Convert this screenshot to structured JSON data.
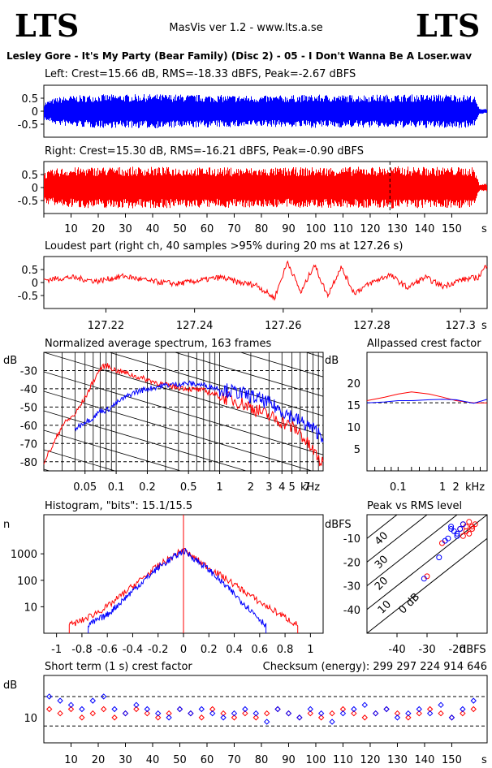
{
  "header": {
    "logo_left": "LTS",
    "logo_right": "LTS",
    "app_title": "MasVis ver 1.2 - www.lts.a.se",
    "file_title": "Lesley Gore - It's My Party (Bear Family) (Disc 2) - 05 - I Don't Wanna Be A Loser.wav"
  },
  "colors": {
    "left": "#0000ff",
    "right": "#ff0000",
    "axis": "#000000"
  },
  "panels": {
    "left": {
      "title": "Left: Crest=15.66 dB, RMS=-18.33 dBFS, Peak=-2.67 dBFS",
      "yticks": [
        "0.5",
        "0",
        "-0.5"
      ]
    },
    "right": {
      "title": "Right: Crest=15.30 dB, RMS=-16.21 dBFS, Peak=-0.90 dBFS",
      "yticks": [
        "0.5",
        "0",
        "-0.5"
      ]
    },
    "time_axis": {
      "ticks": [
        "10",
        "20",
        "30",
        "40",
        "50",
        "60",
        "70",
        "80",
        "90",
        "100",
        "110",
        "120",
        "130",
        "140",
        "150"
      ],
      "unit": "s"
    },
    "loudest": {
      "title": "Loudest part (right ch, 40 samples >95% during 20 ms at 127.26 s)",
      "yticks": [
        "0.5",
        "0",
        "-0.5"
      ],
      "xticks": [
        "127.22",
        "127.24",
        "127.26",
        "127.28",
        "127.3"
      ],
      "unit": "s"
    },
    "spectrum": {
      "title": "Normalized average spectrum, 163 frames",
      "ylabel": "dB",
      "yticks": [
        "-30",
        "-40",
        "-50",
        "-60",
        "-70",
        "-80"
      ],
      "xticks": [
        "0.05",
        "0.1",
        "0.2",
        "0.5",
        "1",
        "2",
        "3",
        "4",
        "5",
        "7"
      ],
      "unit": "kHz"
    },
    "allpass": {
      "title": "Allpassed crest factor",
      "ylabel": "dB",
      "yticks": [
        "20",
        "15",
        "10",
        "5"
      ],
      "xticks": [
        "0.1",
        "1",
        "2"
      ],
      "unit": "kHz"
    },
    "histogram": {
      "title": "Histogram, \"bits\": 15.1/15.5",
      "ylabel": "n",
      "yticks": [
        "1000",
        "100",
        "10"
      ],
      "xticks": [
        "-1",
        "-0.8",
        "-0.6",
        "-0.4",
        "-0.2",
        "0",
        "0.2",
        "0.4",
        "0.6",
        "0.8",
        "1"
      ]
    },
    "peakrms": {
      "title": "Peak vs RMS level",
      "ylabel": "dBFS",
      "yticks": [
        "-10",
        "-20",
        "-30",
        "-40"
      ],
      "xticks": [
        "-40",
        "-30",
        "-20"
      ],
      "unit": "dBFS",
      "diag_labels": [
        "40",
        "30",
        "20",
        "10",
        "0 dB"
      ]
    },
    "shortterm": {
      "title": "Short term (1 s) crest factor",
      "checksum": "Checksum (energy):  299 297 224 914 646",
      "ylabel": "dB",
      "yticks": [
        "10"
      ],
      "xticks": [
        "10",
        "20",
        "30",
        "40",
        "50",
        "60",
        "70",
        "80",
        "90",
        "100",
        "110",
        "120",
        "130",
        "140",
        "150"
      ],
      "unit": "s"
    }
  },
  "chart_data": [
    {
      "type": "area",
      "name": "left-waveform",
      "title": "Left: Crest=15.66 dB, RMS=-18.33 dBFS, Peak=-2.67 dBFS",
      "xlim": [
        0,
        163
      ],
      "ylim": [
        -1,
        1
      ],
      "envelope": {
        "x": [
          0,
          5,
          10,
          20,
          30,
          40,
          50,
          60,
          70,
          80,
          90,
          100,
          110,
          120,
          130,
          140,
          150,
          158,
          160
        ],
        "amp": [
          0.35,
          0.55,
          0.6,
          0.65,
          0.65,
          0.66,
          0.65,
          0.63,
          0.62,
          0.6,
          0.62,
          0.64,
          0.63,
          0.64,
          0.65,
          0.65,
          0.66,
          0.62,
          0.1
        ]
      }
    },
    {
      "type": "area",
      "name": "right-waveform",
      "title": "Right: Crest=15.30 dB, RMS=-16.21 dBFS, Peak=-0.90 dBFS",
      "xlim": [
        0,
        163
      ],
      "ylim": [
        -1,
        1
      ],
      "envelope": {
        "x": [
          0,
          5,
          10,
          20,
          30,
          40,
          50,
          60,
          70,
          80,
          90,
          100,
          110,
          120,
          130,
          140,
          150,
          158,
          160
        ],
        "amp": [
          0.6,
          0.75,
          0.78,
          0.8,
          0.8,
          0.8,
          0.79,
          0.78,
          0.78,
          0.76,
          0.78,
          0.79,
          0.8,
          0.8,
          0.82,
          0.8,
          0.8,
          0.78,
          0.15
        ]
      },
      "marker_s": 127.26
    },
    {
      "type": "line",
      "name": "loudest-part",
      "xlim": [
        127.206,
        127.306
      ],
      "ylim": [
        -1,
        1
      ],
      "x": [
        127.206,
        127.212,
        127.218,
        127.224,
        127.23,
        127.236,
        127.242,
        127.246,
        127.25,
        127.254,
        127.258,
        127.261,
        127.264,
        127.267,
        127.27,
        127.273,
        127.276,
        127.28,
        127.284,
        127.288,
        127.292,
        127.296,
        127.3,
        127.304,
        127.306
      ],
      "y": [
        0.1,
        0.2,
        0.05,
        0.25,
        0.05,
        -0.05,
        0.1,
        0.2,
        0.0,
        -0.1,
        -0.6,
        0.8,
        -0.4,
        0.7,
        -0.5,
        0.6,
        -0.4,
        0.0,
        0.3,
        -0.2,
        0.2,
        -0.15,
        0.1,
        0.2,
        0.7
      ]
    },
    {
      "type": "line",
      "name": "spectrum",
      "xscale": "log",
      "xlim_khz": [
        0.02,
        10
      ],
      "ylim": [
        -85,
        -20
      ],
      "series": [
        {
          "color": "red",
          "x": [
            0.02,
            0.025,
            0.03,
            0.04,
            0.05,
            0.06,
            0.07,
            0.08,
            0.1,
            0.12,
            0.15,
            0.2,
            0.3,
            0.5,
            0.7,
            1,
            1.5,
            2,
            3,
            4,
            5,
            6,
            7,
            8,
            10
          ],
          "y": [
            -80,
            -70,
            -60,
            -54,
            -45,
            -36,
            -29,
            -27,
            -30,
            -31,
            -33,
            -35,
            -38,
            -40,
            -41,
            -44,
            -47,
            -50,
            -55,
            -58,
            -61,
            -64,
            -70,
            -74,
            -82
          ]
        },
        {
          "color": "blue",
          "x": [
            0.04,
            0.05,
            0.06,
            0.07,
            0.08,
            0.1,
            0.12,
            0.15,
            0.2,
            0.3,
            0.5,
            0.7,
            1,
            1.5,
            2,
            3,
            4,
            5,
            6,
            7,
            8,
            10
          ],
          "y": [
            -62,
            -58,
            -56,
            -52,
            -52,
            -48,
            -45,
            -42,
            -40,
            -38,
            -37,
            -38,
            -40,
            -42,
            -44,
            -48,
            -52,
            -55,
            -58,
            -60,
            -62,
            -66
          ]
        }
      ]
    },
    {
      "type": "line",
      "name": "allpassed-crest",
      "xscale": "log",
      "ylim": [
        0,
        25
      ],
      "series": [
        {
          "color": "red",
          "x": [
            0.02,
            0.05,
            0.1,
            0.2,
            0.5,
            1,
            2,
            5,
            10
          ],
          "y": [
            16,
            16.8,
            17.5,
            18,
            17.5,
            16.8,
            16,
            15.5,
            15.5
          ]
        },
        {
          "color": "blue",
          "x": [
            0.02,
            0.05,
            0.1,
            0.2,
            0.5,
            1,
            2,
            5,
            10
          ],
          "y": [
            15.5,
            15.7,
            16,
            16,
            16.2,
            16.3,
            16.2,
            15.4,
            16.3
          ]
        }
      ]
    },
    {
      "type": "line",
      "name": "histogram",
      "yscale": "log",
      "xlim": [
        -1.1,
        1.1
      ],
      "series": [
        {
          "color": "red",
          "x": [
            -0.9,
            -0.8,
            -0.6,
            -0.4,
            -0.2,
            -0.05,
            0,
            0.05,
            0.2,
            0.4,
            0.6,
            0.8,
            0.9
          ],
          "y": [
            2,
            3,
            10,
            60,
            350,
            1000,
            1500,
            900,
            300,
            70,
            15,
            4,
            2
          ]
        },
        {
          "color": "blue",
          "x": [
            -0.75,
            -0.6,
            -0.4,
            -0.2,
            -0.05,
            0,
            0.05,
            0.2,
            0.4,
            0.55,
            0.65
          ],
          "y": [
            2,
            5,
            40,
            300,
            900,
            1300,
            900,
            250,
            30,
            6,
            2
          ]
        }
      ]
    },
    {
      "type": "scatter",
      "name": "peak-vs-rms",
      "xlim": [
        -50,
        -10
      ],
      "ylim": [
        -50,
        0
      ],
      "series": [
        {
          "color": "red",
          "x": [
            -18,
            -17,
            -16,
            -15,
            -14,
            -16,
            -17,
            -15,
            -18,
            -19,
            -25,
            -30
          ],
          "y": [
            -4,
            -5,
            -3,
            -6,
            -4,
            -8,
            -7,
            -5,
            -9,
            -6,
            -12,
            -26
          ]
        },
        {
          "color": "blue",
          "x": [
            -19,
            -20,
            -21,
            -22,
            -23,
            -18,
            -24,
            -26,
            -31,
            -20,
            -22
          ],
          "y": [
            -6,
            -8,
            -7,
            -5,
            -10,
            -4,
            -11,
            -18,
            -27,
            -9,
            -6
          ]
        }
      ]
    },
    {
      "type": "scatter",
      "name": "short-term-crest",
      "xlim": [
        0,
        163
      ],
      "series": [
        {
          "color": "red",
          "x": [
            2,
            6,
            10,
            14,
            18,
            22,
            26,
            30,
            34,
            38,
            42,
            46,
            50,
            54,
            58,
            62,
            66,
            70,
            74,
            78,
            82,
            86,
            90,
            94,
            98,
            102,
            106,
            110,
            114,
            118,
            122,
            126,
            130,
            134,
            138,
            142,
            146,
            150,
            154,
            158
          ],
          "y": [
            12,
            11,
            12,
            10,
            11,
            12,
            10,
            11,
            12,
            11,
            10,
            11,
            12,
            11,
            10,
            12,
            11,
            10,
            11,
            10,
            11,
            12,
            11,
            10,
            11,
            10,
            11,
            12,
            11,
            10,
            11,
            12,
            11,
            10,
            11,
            12,
            11,
            10,
            11,
            12
          ]
        },
        {
          "color": "blue",
          "x": [
            2,
            6,
            10,
            14,
            18,
            22,
            26,
            30,
            34,
            38,
            42,
            46,
            50,
            54,
            58,
            62,
            66,
            70,
            74,
            78,
            82,
            86,
            90,
            94,
            98,
            102,
            106,
            110,
            114,
            118,
            122,
            126,
            130,
            134,
            138,
            142,
            146,
            150,
            154,
            158
          ],
          "y": [
            15,
            14,
            13,
            12,
            14,
            15,
            12,
            11,
            13,
            12,
            11,
            10,
            12,
            11,
            12,
            11,
            10,
            11,
            12,
            11,
            9,
            12,
            11,
            10,
            12,
            11,
            9,
            11,
            12,
            13,
            11,
            12,
            10,
            11,
            12,
            11,
            13,
            10,
            12,
            14
          ]
        }
      ]
    }
  ]
}
